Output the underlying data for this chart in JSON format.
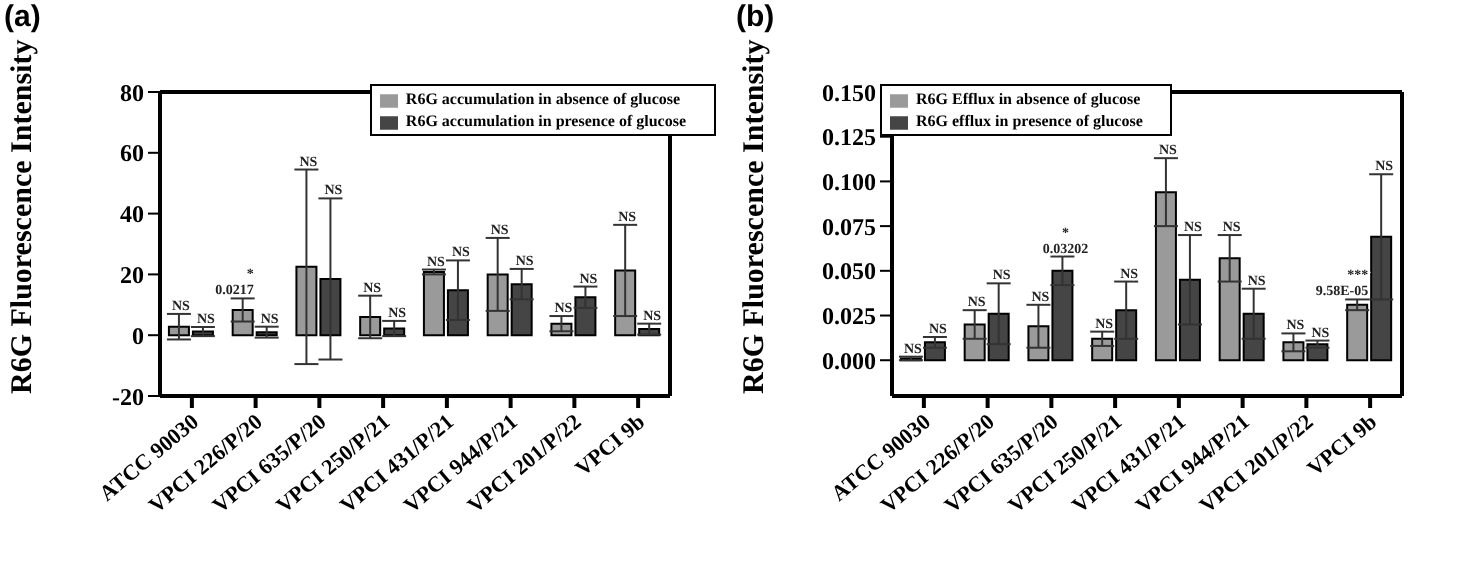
{
  "chart_data": [
    {
      "type": "bar",
      "title": "(a)",
      "ylabel": "R6G Fluorescence Intensity",
      "categories": [
        "ATCC 90030",
        "VPCI 226/P/20",
        "VPCI 635/P/20",
        "VPCI 250/P/21",
        "VPCI 431/P/21",
        "VPCI 944/P/21",
        "VPCI 201/P/22",
        "VPCI 9b"
      ],
      "series": [
        {
          "name": "R6G accumulation in absence of glucose",
          "color": "#9a9a9a",
          "values": [
            2.8,
            8.3,
            22.5,
            6,
            20.8,
            20,
            3.8,
            21.3
          ],
          "errors": [
            4.2,
            3.8,
            32,
            7,
            0.8,
            12,
            2.5,
            15
          ]
        },
        {
          "name": "R6G accumulation in presence of glucose",
          "color": "#454545",
          "values": [
            1.2,
            1,
            18.5,
            2.2,
            14.8,
            16.8,
            12.5,
            2
          ],
          "errors": [
            1.5,
            1.8,
            26.5,
            2.5,
            9.8,
            5,
            3.5,
            1.8
          ]
        }
      ],
      "annotations": [
        {
          "text": "NS",
          "x": "ATCC 90030",
          "y": 7
        },
        {
          "text": "NS",
          "x": "ATCC 90030",
          "y": 2.7
        },
        {
          "text": "*\n0.0217",
          "x": "VPCI 226/P/20",
          "y": 12.1
        },
        {
          "text": "NS",
          "x": "VPCI 226/P/20",
          "y": 2.8
        },
        {
          "text": "NS",
          "x": "VPCI 635/P/20",
          "y": 54.5
        },
        {
          "text": "NS",
          "x": "VPCI 635/P/20",
          "y": 45
        },
        {
          "text": "NS",
          "x": "VPCI 250/P/21",
          "y": 13
        },
        {
          "text": "NS",
          "x": "VPCI 250/P/21",
          "y": 4.7
        },
        {
          "text": "NS",
          "x": "VPCI 431/P/21",
          "y": 21.6
        },
        {
          "text": "NS",
          "x": "VPCI 431/P/21",
          "y": 24.6
        },
        {
          "text": "NS",
          "x": "VPCI 944/P/21",
          "y": 32
        },
        {
          "text": "NS",
          "x": "VPCI 944/P/21",
          "y": 21.8
        },
        {
          "text": "NS",
          "x": "VPCI 201/P/22",
          "y": 6.3
        },
        {
          "text": "NS",
          "x": "VPCI 201/P/22",
          "y": 16
        },
        {
          "text": "NS",
          "x": "VPCI 9b",
          "y": 36.3
        },
        {
          "text": "NS",
          "x": "VPCI 9b",
          "y": 3.8
        }
      ],
      "ylim": [
        -20,
        80
      ],
      "yticks": [
        -20,
        0,
        20,
        40,
        60,
        80
      ],
      "legend": "top right"
    },
    {
      "type": "bar",
      "title": "(b)",
      "ylabel": "R6G Fluorescence Intensity",
      "categories": [
        "ATCC 90030",
        "VPCI 226/P/20",
        "VPCI 635/P/20",
        "VPCI 250/P/21",
        "VPCI 431/P/21",
        "VPCI 944/P/21",
        "VPCI 201/P/22",
        "VPCI 9b"
      ],
      "series": [
        {
          "name": "R6G Efflux in absence of glucose",
          "color": "#9a9a9a",
          "values": [
            0.001,
            0.02,
            0.019,
            0.012,
            0.094,
            0.057,
            0.01,
            0.031
          ],
          "errors": [
            0.001,
            0.008,
            0.012,
            0.004,
            0.019,
            0.013,
            0.005,
            0.003
          ]
        },
        {
          "name": "R6G efflux in presence of glucose",
          "color": "#454545",
          "values": [
            0.01,
            0.026,
            0.05,
            0.028,
            0.045,
            0.026,
            0.009,
            0.069
          ],
          "errors": [
            0.003,
            0.017,
            0.008,
            0.016,
            0.025,
            0.014,
            0.002,
            0.035
          ]
        }
      ],
      "annotations": [
        {
          "text": "NS",
          "x": "ATCC 90030",
          "y": 0.002
        },
        {
          "text": "NS",
          "x": "ATCC 90030",
          "y": 0.013
        },
        {
          "text": "NS",
          "x": "VPCI 226/P/20",
          "y": 0.028
        },
        {
          "text": "NS",
          "x": "VPCI 226/P/20",
          "y": 0.043
        },
        {
          "text": "NS",
          "x": "VPCI 635/P/20",
          "y": 0.031
        },
        {
          "text": "*\n0.03202",
          "x": "VPCI 635/P/20",
          "y": 0.058
        },
        {
          "text": "NS",
          "x": "VPCI 250/P/21",
          "y": 0.016
        },
        {
          "text": "NS",
          "x": "VPCI 250/P/21",
          "y": 0.044
        },
        {
          "text": "NS",
          "x": "VPCI 431/P/21",
          "y": 0.113
        },
        {
          "text": "NS",
          "x": "VPCI 431/P/21",
          "y": 0.07
        },
        {
          "text": "NS",
          "x": "VPCI 944/P/21",
          "y": 0.07
        },
        {
          "text": "NS",
          "x": "VPCI 944/P/21",
          "y": 0.04
        },
        {
          "text": "NS",
          "x": "VPCI 201/P/22",
          "y": 0.015
        },
        {
          "text": "NS",
          "x": "VPCI 201/P/22",
          "y": 0.011
        },
        {
          "text": "***\n9.58E-05",
          "x": "VPCI 9b",
          "y": 0.034
        },
        {
          "text": "NS",
          "x": "VPCI 9b",
          "y": 0.104
        }
      ],
      "ylim": [
        -0.02,
        0.15
      ],
      "yticks": [
        {
          "value": 0,
          "label": "0.000"
        },
        {
          "value": 0.025,
          "label": "0.025"
        },
        {
          "value": 0.05,
          "label": "0.050"
        },
        {
          "value": 0.075,
          "label": "0.075"
        },
        {
          "value": 0.1,
          "label": "0.100"
        },
        {
          "value": 0.125,
          "label": "0.125"
        },
        {
          "value": 0.15,
          "label": "0.150"
        }
      ],
      "legend": "top left"
    }
  ]
}
